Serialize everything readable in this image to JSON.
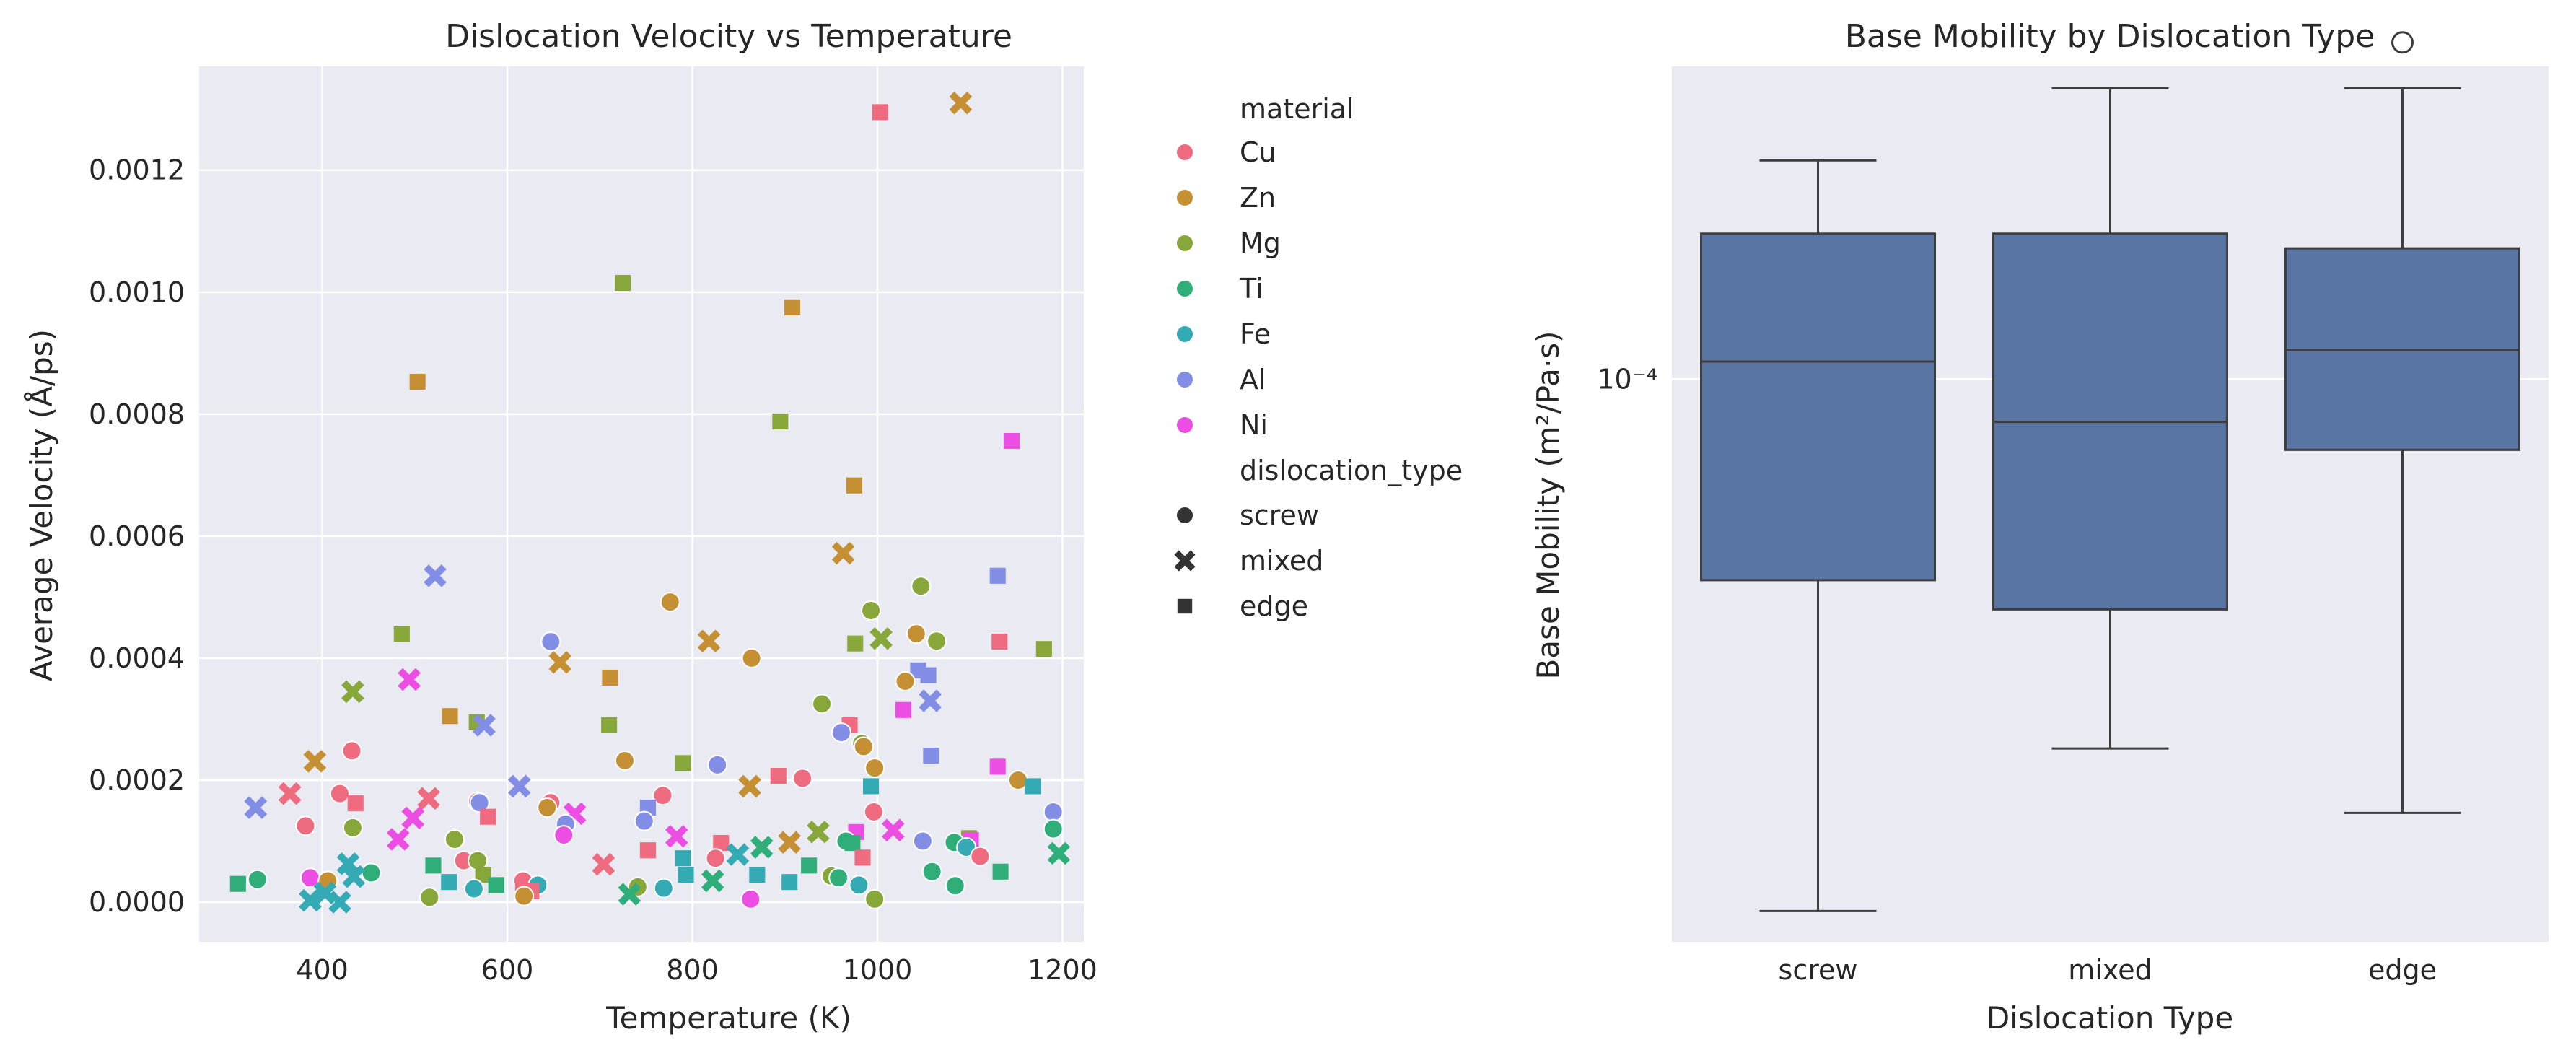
{
  "colors": {
    "Cu": "#ef6b7f",
    "Zn": "#c58f33",
    "Mg": "#87a73a",
    "Ti": "#2fae79",
    "Fe": "#34abb4",
    "Al": "#828ee6",
    "Ni": "#ec4ee3",
    "box_fill": "#5975a4",
    "box_line": "#3d3d3d",
    "panel_bg": "#eaeaf2",
    "grid": "#ffffff"
  },
  "legend": {
    "hue_title": "material",
    "hue_items": [
      "Cu",
      "Zn",
      "Mg",
      "Ti",
      "Fe",
      "Al",
      "Ni"
    ],
    "style_title": "dislocation_type",
    "style_items": [
      {
        "label": "screw",
        "marker": "circle"
      },
      {
        "label": "mixed",
        "marker": "x"
      },
      {
        "label": "edge",
        "marker": "square"
      }
    ]
  },
  "chart_data": [
    {
      "type": "scatter",
      "title": "Dislocation Velocity vs Temperature",
      "xlabel": "Temperature (K)",
      "ylabel": "Average Velocity (Å/ps)",
      "xlim": [
        267,
        1223
      ],
      "ylim": [
        -6.5e-05,
        0.00137
      ],
      "xticks": [
        400,
        600,
        800,
        1000,
        1200
      ],
      "xtick_labels": [
        "400",
        "600",
        "800",
        "1000",
        "1200"
      ],
      "yticks": [
        0,
        0.0002,
        0.0004,
        0.0006,
        0.0008,
        0.001,
        0.0012
      ],
      "ytick_labels": [
        "0.0000",
        "0.0002",
        "0.0004",
        "0.0006",
        "0.0008",
        "0.0010",
        "0.0012"
      ],
      "grid": true,
      "legend_position": "outside-right",
      "points": [
        {
          "x": 1003,
          "y": 0.001295,
          "material": "Cu",
          "dtype": "edge"
        },
        {
          "x": 1090,
          "y": 0.00131,
          "material": "Zn",
          "dtype": "mixed"
        },
        {
          "x": 725,
          "y": 0.001015,
          "material": "Mg",
          "dtype": "edge"
        },
        {
          "x": 908,
          "y": 0.000975,
          "material": "Zn",
          "dtype": "edge"
        },
        {
          "x": 503,
          "y": 0.000853,
          "material": "Zn",
          "dtype": "edge"
        },
        {
          "x": 895,
          "y": 0.000788,
          "material": "Mg",
          "dtype": "edge"
        },
        {
          "x": 1145,
          "y": 0.000756,
          "material": "Ni",
          "dtype": "edge"
        },
        {
          "x": 975,
          "y": 0.000683,
          "material": "Zn",
          "dtype": "edge"
        },
        {
          "x": 963,
          "y": 0.000572,
          "material": "Zn",
          "dtype": "mixed"
        },
        {
          "x": 522,
          "y": 0.000535,
          "material": "Al",
          "dtype": "mixed"
        },
        {
          "x": 1130,
          "y": 0.000535,
          "material": "Al",
          "dtype": "edge"
        },
        {
          "x": 1047,
          "y": 0.000518,
          "material": "Mg",
          "dtype": "screw"
        },
        {
          "x": 776,
          "y": 0.000492,
          "material": "Zn",
          "dtype": "screw"
        },
        {
          "x": 993,
          "y": 0.000478,
          "material": "Mg",
          "dtype": "screw"
        },
        {
          "x": 486,
          "y": 0.00044,
          "material": "Mg",
          "dtype": "edge"
        },
        {
          "x": 1042,
          "y": 0.00044,
          "material": "Zn",
          "dtype": "screw"
        },
        {
          "x": 1004,
          "y": 0.000432,
          "material": "Mg",
          "dtype": "mixed"
        },
        {
          "x": 1132,
          "y": 0.000427,
          "material": "Cu",
          "dtype": "edge"
        },
        {
          "x": 647,
          "y": 0.000427,
          "material": "Al",
          "dtype": "screw"
        },
        {
          "x": 818,
          "y": 0.000428,
          "material": "Zn",
          "dtype": "mixed"
        },
        {
          "x": 1064,
          "y": 0.000428,
          "material": "Mg",
          "dtype": "screw"
        },
        {
          "x": 976,
          "y": 0.000424,
          "material": "Mg",
          "dtype": "edge"
        },
        {
          "x": 1180,
          "y": 0.000415,
          "material": "Mg",
          "dtype": "edge"
        },
        {
          "x": 864,
          "y": 0.0004,
          "material": "Zn",
          "dtype": "screw"
        },
        {
          "x": 657,
          "y": 0.000393,
          "material": "Zn",
          "dtype": "mixed"
        },
        {
          "x": 1044,
          "y": 0.00038,
          "material": "Al",
          "dtype": "edge"
        },
        {
          "x": 1055,
          "y": 0.000372,
          "material": "Al",
          "dtype": "edge"
        },
        {
          "x": 711,
          "y": 0.000368,
          "material": "Zn",
          "dtype": "edge"
        },
        {
          "x": 494,
          "y": 0.000365,
          "material": "Ni",
          "dtype": "mixed"
        },
        {
          "x": 1030,
          "y": 0.000362,
          "material": "Zn",
          "dtype": "screw"
        },
        {
          "x": 433,
          "y": 0.000345,
          "material": "Mg",
          "dtype": "mixed"
        },
        {
          "x": 1057,
          "y": 0.00033,
          "material": "Al",
          "dtype": "mixed"
        },
        {
          "x": 940,
          "y": 0.000325,
          "material": "Mg",
          "dtype": "screw"
        },
        {
          "x": 1028,
          "y": 0.000315,
          "material": "Ni",
          "dtype": "edge"
        },
        {
          "x": 538,
          "y": 0.000305,
          "material": "Zn",
          "dtype": "edge"
        },
        {
          "x": 567,
          "y": 0.000295,
          "material": "Mg",
          "dtype": "edge"
        },
        {
          "x": 575,
          "y": 0.00029,
          "material": "Al",
          "dtype": "mixed"
        },
        {
          "x": 710,
          "y": 0.00029,
          "material": "Mg",
          "dtype": "edge"
        },
        {
          "x": 970,
          "y": 0.00029,
          "material": "Cu",
          "dtype": "edge"
        },
        {
          "x": 961,
          "y": 0.000278,
          "material": "Al",
          "dtype": "screw"
        },
        {
          "x": 983,
          "y": 0.00026,
          "material": "Mg",
          "dtype": "screw"
        },
        {
          "x": 985,
          "y": 0.000255,
          "material": "Zn",
          "dtype": "screw"
        },
        {
          "x": 432,
          "y": 0.000248,
          "material": "Cu",
          "dtype": "screw"
        },
        {
          "x": 1058,
          "y": 0.00024,
          "material": "Al",
          "dtype": "edge"
        },
        {
          "x": 727,
          "y": 0.000232,
          "material": "Zn",
          "dtype": "screw"
        },
        {
          "x": 392,
          "y": 0.000231,
          "material": "Zn",
          "dtype": "mixed"
        },
        {
          "x": 790,
          "y": 0.000228,
          "material": "Mg",
          "dtype": "edge"
        },
        {
          "x": 827,
          "y": 0.000225,
          "material": "Al",
          "dtype": "screw"
        },
        {
          "x": 1130,
          "y": 0.000222,
          "material": "Ni",
          "dtype": "edge"
        },
        {
          "x": 997,
          "y": 0.00022,
          "material": "Zn",
          "dtype": "screw"
        },
        {
          "x": 893,
          "y": 0.000207,
          "material": "Cu",
          "dtype": "edge"
        },
        {
          "x": 919,
          "y": 0.000203,
          "material": "Cu",
          "dtype": "screw"
        },
        {
          "x": 1152,
          "y": 0.0002,
          "material": "Zn",
          "dtype": "screw"
        },
        {
          "x": 862,
          "y": 0.00019,
          "material": "Zn",
          "dtype": "mixed"
        },
        {
          "x": 613,
          "y": 0.00019,
          "material": "Al",
          "dtype": "mixed"
        },
        {
          "x": 1168,
          "y": 0.00019,
          "material": "Fe",
          "dtype": "edge"
        },
        {
          "x": 993,
          "y": 0.00019,
          "material": "Fe",
          "dtype": "edge"
        },
        {
          "x": 365,
          "y": 0.000178,
          "material": "Cu",
          "dtype": "mixed"
        },
        {
          "x": 419,
          "y": 0.000178,
          "material": "Cu",
          "dtype": "screw"
        },
        {
          "x": 768,
          "y": 0.000175,
          "material": "Cu",
          "dtype": "screw"
        },
        {
          "x": 515,
          "y": 0.00017,
          "material": "Cu",
          "dtype": "mixed"
        },
        {
          "x": 568,
          "y": 0.000165,
          "material": "Cu",
          "dtype": "screw"
        },
        {
          "x": 570,
          "y": 0.000163,
          "material": "Al",
          "dtype": "screw"
        },
        {
          "x": 647,
          "y": 0.000163,
          "material": "Cu",
          "dtype": "screw"
        },
        {
          "x": 436,
          "y": 0.000162,
          "material": "Cu",
          "dtype": "edge"
        },
        {
          "x": 328,
          "y": 0.000155,
          "material": "Al",
          "dtype": "mixed"
        },
        {
          "x": 643,
          "y": 0.000155,
          "material": "Zn",
          "dtype": "screw"
        },
        {
          "x": 752,
          "y": 0.000155,
          "material": "Al",
          "dtype": "edge"
        },
        {
          "x": 1190,
          "y": 0.000148,
          "material": "Al",
          "dtype": "screw"
        },
        {
          "x": 996,
          "y": 0.000148,
          "material": "Cu",
          "dtype": "screw"
        },
        {
          "x": 673,
          "y": 0.000145,
          "material": "Ni",
          "dtype": "mixed"
        },
        {
          "x": 579,
          "y": 0.00014,
          "material": "Cu",
          "dtype": "edge"
        },
        {
          "x": 498,
          "y": 0.000138,
          "material": "Ni",
          "dtype": "mixed"
        },
        {
          "x": 748,
          "y": 0.000133,
          "material": "Al",
          "dtype": "screw"
        },
        {
          "x": 663,
          "y": 0.000128,
          "material": "Al",
          "dtype": "screw"
        },
        {
          "x": 382,
          "y": 0.000125,
          "material": "Cu",
          "dtype": "screw"
        },
        {
          "x": 433,
          "y": 0.000122,
          "material": "Mg",
          "dtype": "screw"
        },
        {
          "x": 1190,
          "y": 0.00012,
          "material": "Ti",
          "dtype": "screw"
        },
        {
          "x": 1017,
          "y": 0.000118,
          "material": "Ni",
          "dtype": "mixed"
        },
        {
          "x": 936,
          "y": 0.000115,
          "material": "Mg",
          "dtype": "mixed"
        },
        {
          "x": 977,
          "y": 0.000115,
          "material": "Ni",
          "dtype": "edge"
        },
        {
          "x": 661,
          "y": 0.00011,
          "material": "Ni",
          "dtype": "screw"
        },
        {
          "x": 783,
          "y": 0.000108,
          "material": "Ni",
          "dtype": "mixed"
        },
        {
          "x": 1099,
          "y": 0.000105,
          "material": "Mg",
          "dtype": "edge"
        },
        {
          "x": 543,
          "y": 0.000103,
          "material": "Mg",
          "dtype": "screw"
        },
        {
          "x": 482,
          "y": 0.000103,
          "material": "Ni",
          "dtype": "mixed"
        },
        {
          "x": 1101,
          "y": 0.000102,
          "material": "Ni",
          "dtype": "edge"
        },
        {
          "x": 1049,
          "y": 0.0001,
          "material": "Al",
          "dtype": "screw"
        },
        {
          "x": 966,
          "y": 0.0001,
          "material": "Ti",
          "dtype": "screw"
        },
        {
          "x": 905,
          "y": 9.8e-05,
          "material": "Zn",
          "dtype": "mixed"
        },
        {
          "x": 1083,
          "y": 9.8e-05,
          "material": "Ti",
          "dtype": "screw"
        },
        {
          "x": 831,
          "y": 9.7e-05,
          "material": "Cu",
          "dtype": "edge"
        },
        {
          "x": 973,
          "y": 9.7e-05,
          "material": "Ti",
          "dtype": "edge"
        },
        {
          "x": 1096,
          "y": 9e-05,
          "material": "Fe",
          "dtype": "screw"
        },
        {
          "x": 875,
          "y": 9e-05,
          "material": "Ti",
          "dtype": "mixed"
        },
        {
          "x": 752,
          "y": 8.5e-05,
          "material": "Cu",
          "dtype": "edge"
        },
        {
          "x": 1196,
          "y": 8e-05,
          "material": "Ti",
          "dtype": "mixed"
        },
        {
          "x": 849,
          "y": 7.8e-05,
          "material": "Fe",
          "dtype": "mixed"
        },
        {
          "x": 1111,
          "y": 7.5e-05,
          "material": "Cu",
          "dtype": "screw"
        },
        {
          "x": 984,
          "y": 7.3e-05,
          "material": "Cu",
          "dtype": "edge"
        },
        {
          "x": 825,
          "y": 7.2e-05,
          "material": "Cu",
          "dtype": "screw"
        },
        {
          "x": 790,
          "y": 7.2e-05,
          "material": "Fe",
          "dtype": "edge"
        },
        {
          "x": 553,
          "y": 6.8e-05,
          "material": "Cu",
          "dtype": "screw"
        },
        {
          "x": 568,
          "y": 6.8e-05,
          "material": "Mg",
          "dtype": "screw"
        },
        {
          "x": 428,
          "y": 6.3e-05,
          "material": "Fe",
          "dtype": "mixed"
        },
        {
          "x": 704,
          "y": 6.2e-05,
          "material": "Cu",
          "dtype": "mixed"
        },
        {
          "x": 926,
          "y": 6e-05,
          "material": "Ti",
          "dtype": "edge"
        },
        {
          "x": 520,
          "y": 6e-05,
          "material": "Ti",
          "dtype": "edge"
        },
        {
          "x": 1059,
          "y": 5e-05,
          "material": "Ti",
          "dtype": "screw"
        },
        {
          "x": 1133,
          "y": 5e-05,
          "material": "Ti",
          "dtype": "edge"
        },
        {
          "x": 453,
          "y": 4.8e-05,
          "material": "Ti",
          "dtype": "screw"
        },
        {
          "x": 574,
          "y": 4.5e-05,
          "material": "Mg",
          "dtype": "edge"
        },
        {
          "x": 793,
          "y": 4.5e-05,
          "material": "Fe",
          "dtype": "edge"
        },
        {
          "x": 870,
          "y": 4.5e-05,
          "material": "Fe",
          "dtype": "edge"
        },
        {
          "x": 950,
          "y": 4.3e-05,
          "material": "Mg",
          "dtype": "screw"
        },
        {
          "x": 434,
          "y": 4.2e-05,
          "material": "Fe",
          "dtype": "mixed"
        },
        {
          "x": 958,
          "y": 4e-05,
          "material": "Ti",
          "dtype": "screw"
        },
        {
          "x": 387,
          "y": 4e-05,
          "material": "Ni",
          "dtype": "screw"
        },
        {
          "x": 330,
          "y": 3.7e-05,
          "material": "Ti",
          "dtype": "screw"
        },
        {
          "x": 822,
          "y": 3.5e-05,
          "material": "Ti",
          "dtype": "mixed"
        },
        {
          "x": 406,
          "y": 3.5e-05,
          "material": "Zn",
          "dtype": "screw"
        },
        {
          "x": 617,
          "y": 3.5e-05,
          "material": "Cu",
          "dtype": "screw"
        },
        {
          "x": 905,
          "y": 3.3e-05,
          "material": "Fe",
          "dtype": "edge"
        },
        {
          "x": 537,
          "y": 3.3e-05,
          "material": "Fe",
          "dtype": "edge"
        },
        {
          "x": 309,
          "y": 3e-05,
          "material": "Ti",
          "dtype": "edge"
        },
        {
          "x": 633,
          "y": 2.8e-05,
          "material": "Fe",
          "dtype": "screw"
        },
        {
          "x": 588,
          "y": 2.8e-05,
          "material": "Ti",
          "dtype": "edge"
        },
        {
          "x": 980,
          "y": 2.8e-05,
          "material": "Fe",
          "dtype": "screw"
        },
        {
          "x": 1084,
          "y": 2.7e-05,
          "material": "Ti",
          "dtype": "screw"
        },
        {
          "x": 741,
          "y": 2.5e-05,
          "material": "Mg",
          "dtype": "screw"
        },
        {
          "x": 769,
          "y": 2.3e-05,
          "material": "Fe",
          "dtype": "screw"
        },
        {
          "x": 564,
          "y": 2.2e-05,
          "material": "Fe",
          "dtype": "screw"
        },
        {
          "x": 617,
          "y": 1.8e-05,
          "material": "Cu",
          "dtype": "edge"
        },
        {
          "x": 626,
          "y": 1.8e-05,
          "material": "Cu",
          "dtype": "edge"
        },
        {
          "x": 403,
          "y": 1.5e-05,
          "material": "Fe",
          "dtype": "mixed"
        },
        {
          "x": 732,
          "y": 1.3e-05,
          "material": "Ti",
          "dtype": "mixed"
        },
        {
          "x": 618,
          "y": 1e-05,
          "material": "Zn",
          "dtype": "screw"
        },
        {
          "x": 516,
          "y": 8e-06,
          "material": "Mg",
          "dtype": "screw"
        },
        {
          "x": 997,
          "y": 5e-06,
          "material": "Mg",
          "dtype": "screw"
        },
        {
          "x": 863,
          "y": 5e-06,
          "material": "Ni",
          "dtype": "screw"
        },
        {
          "x": 387,
          "y": 3e-06,
          "material": "Fe",
          "dtype": "mixed"
        },
        {
          "x": 419,
          "y": 0.0,
          "material": "Fe",
          "dtype": "mixed"
        }
      ]
    },
    {
      "type": "box",
      "title": "Base Mobility by Dislocation Type",
      "xlabel": "Dislocation Type",
      "ylabel": "Base Mobility (m²/Pa·s)",
      "yscale": "log",
      "ylim": [
        1.63e-05,
        0.000274
      ],
      "yticks": [
        0.0001
      ],
      "ytick_labels": [
        "10⁻⁴"
      ],
      "categories": [
        "screw",
        "mixed",
        "edge"
      ],
      "boxes": [
        {
          "category": "screw",
          "whislo": 1.8e-05,
          "q1": 5.23e-05,
          "med": 0.0001058,
          "q3": 0.0001598,
          "whishi": 0.0002024,
          "fliers": []
        },
        {
          "category": "mixed",
          "whislo": 3.04e-05,
          "q1": 4.76e-05,
          "med": 8.71e-05,
          "q3": 0.0001598,
          "whishi": 0.0002553,
          "fliers": []
        },
        {
          "category": "edge",
          "whislo": 2.47e-05,
          "q1": 7.96e-05,
          "med": 0.0001098,
          "q3": 0.0001524,
          "whishi": 0.0002553,
          "fliers": [
            0.000296
          ]
        }
      ]
    }
  ]
}
